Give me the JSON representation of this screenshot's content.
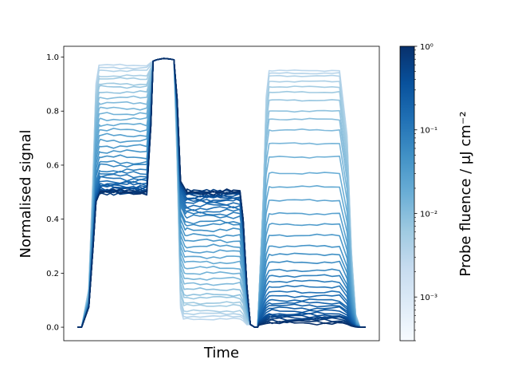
{
  "chart_data": {
    "type": "line",
    "xlabel": "Time",
    "ylabel": "Normalised signal",
    "ylim": [
      -0.05,
      1.04
    ],
    "y_ticks": [
      "0.0",
      "0.2",
      "0.4",
      "0.6",
      "0.8",
      "1.0"
    ],
    "x_ticks_shown": false,
    "colorbar": {
      "label": "Probe fluence / μJ cm⁻²",
      "scale": "log",
      "range": [
        0.0003,
        1
      ],
      "colormap": "Blues",
      "ticks": [
        "10⁻³",
        "10⁻²",
        "10⁻¹",
        "10⁰"
      ],
      "colors": [
        "#f7fbff",
        "#deebf7",
        "#c6dbef",
        "#9ecae1",
        "#6baed6",
        "#4292c6",
        "#2171b5",
        "#08519c",
        "#08306b"
      ]
    },
    "series_count": 40,
    "series_levels": {
      "description": "Each curve: rise to plateau A, rise to ~1.0 peak, drop to plateau B, fall to ~0, rise to plateau C, fall to 0. Values listed from lowest to highest probe fluence.",
      "plateau_A": [
        0.97,
        0.96,
        0.95,
        0.93,
        0.92,
        0.9,
        0.89,
        0.87,
        0.85,
        0.83,
        0.81,
        0.79,
        0.77,
        0.75,
        0.73,
        0.71,
        0.69,
        0.67,
        0.65,
        0.63,
        0.61,
        0.6,
        0.58,
        0.57,
        0.56,
        0.55,
        0.54,
        0.53,
        0.53,
        0.52,
        0.52,
        0.51,
        0.51,
        0.51,
        0.5,
        0.5,
        0.5,
        0.5,
        0.5,
        0.5
      ],
      "plateau_B": [
        0.03,
        0.04,
        0.05,
        0.06,
        0.08,
        0.09,
        0.11,
        0.12,
        0.14,
        0.16,
        0.18,
        0.2,
        0.22,
        0.24,
        0.26,
        0.28,
        0.3,
        0.32,
        0.34,
        0.36,
        0.38,
        0.39,
        0.41,
        0.42,
        0.43,
        0.44,
        0.45,
        0.46,
        0.47,
        0.47,
        0.48,
        0.48,
        0.49,
        0.49,
        0.49,
        0.5,
        0.5,
        0.5,
        0.5,
        0.5
      ],
      "plateau_C": [
        0.95,
        0.94,
        0.93,
        0.91,
        0.89,
        0.87,
        0.84,
        0.8,
        0.77,
        0.73,
        0.68,
        0.63,
        0.57,
        0.52,
        0.47,
        0.42,
        0.38,
        0.34,
        0.3,
        0.27,
        0.24,
        0.21,
        0.19,
        0.17,
        0.15,
        0.13,
        0.115,
        0.1,
        0.09,
        0.08,
        0.07,
        0.06,
        0.05,
        0.045,
        0.04,
        0.035,
        0.03,
        0.025,
        0.02,
        0.015
      ]
    }
  }
}
